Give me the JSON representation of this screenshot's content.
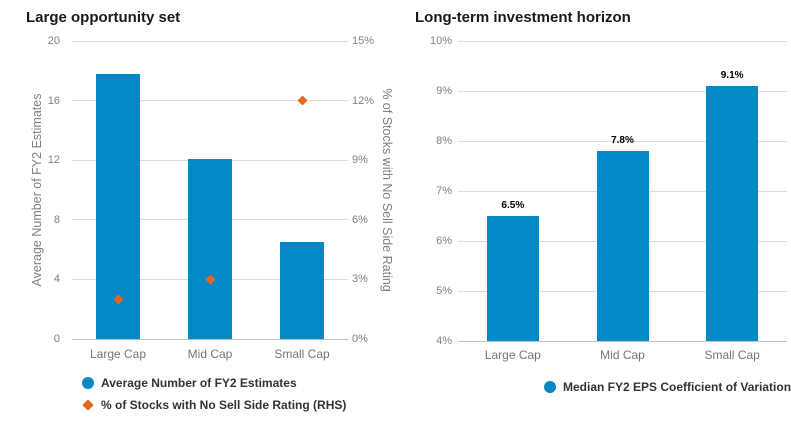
{
  "colors": {
    "bar_blue": "#0589C6",
    "diamond_orange": "#E8671B",
    "gridline": "#DCDCDC",
    "baseline": "#C0C0C0",
    "tick_text": "#808080",
    "title_text": "#1A1A1A",
    "legend_text": "#333333",
    "data_label_text": "#000000"
  },
  "chart_data": [
    {
      "type": "bar",
      "title": "Large opportunity set",
      "categories": [
        "Large Cap",
        "Mid Cap",
        "Small Cap"
      ],
      "series": [
        {
          "name": "Average Number of FY2 Estimates",
          "render": "bar",
          "axis": "left",
          "marker": "circle",
          "color": "#0589C6",
          "values": [
            17.8,
            12.1,
            6.5
          ]
        },
        {
          "name": "% of Stocks with No Sell Side Rating (RHS)",
          "render": "point",
          "axis": "right",
          "marker": "diamond",
          "color": "#E8671B",
          "values": [
            2,
            3,
            12
          ]
        }
      ],
      "left_axis": {
        "title": "Average Number of FY2 Estimates",
        "min": 0,
        "max": 20,
        "tick_values": [
          0,
          4,
          8,
          12,
          16,
          20
        ],
        "tick_labels": [
          "0",
          "4",
          "8",
          "12",
          "16",
          "20"
        ]
      },
      "right_axis": {
        "title": "% of Stocks with No Sell Side Rating",
        "min": 0,
        "max": 15,
        "tick_values": [
          0,
          3,
          6,
          9,
          12,
          15
        ],
        "tick_labels": [
          "0%",
          "3%",
          "6%",
          "9%",
          "12%",
          "15%"
        ]
      },
      "grid": true,
      "legend_position": "bottom"
    },
    {
      "type": "bar",
      "title": "Long-term investment horizon",
      "categories": [
        "Large Cap",
        "Mid Cap",
        "Small Cap"
      ],
      "series": [
        {
          "name": "Median FY2 EPS Coefficient of Variation",
          "render": "bar",
          "axis": "left",
          "marker": "circle",
          "color": "#0589C6",
          "values": [
            6.5,
            7.8,
            9.1
          ],
          "data_labels": [
            "6.5%",
            "7.8%",
            "9.1%"
          ]
        }
      ],
      "left_axis": {
        "title": "",
        "min": 4,
        "max": 10,
        "tick_values": [
          4,
          5,
          6,
          7,
          8,
          9,
          10
        ],
        "tick_labels": [
          "4%",
          "5%",
          "6%",
          "7%",
          "8%",
          "9%",
          "10%"
        ]
      },
      "grid": true,
      "legend_position": "bottom"
    }
  ]
}
